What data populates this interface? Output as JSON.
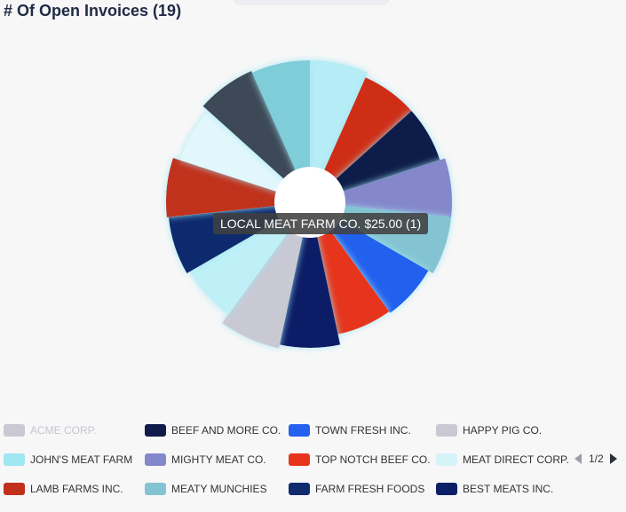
{
  "header": {
    "title": "# Of Open Invoices (19)"
  },
  "tooltip": {
    "text": "LOCAL MEAT FARM CO. $25.00 (1)"
  },
  "pager": {
    "text": "1/2"
  },
  "chart_data": {
    "type": "pie",
    "title": "# Of Open Invoices (19)",
    "total": 19,
    "slices": [
      {
        "label": "",
        "value": 1,
        "color": "#b6ecf5"
      },
      {
        "label": "",
        "value": 1,
        "color": "#cf2e14"
      },
      {
        "label": "",
        "value": 1,
        "color": "#0f1c4a"
      },
      {
        "label": "",
        "value": 1,
        "color": "#8487ca"
      },
      {
        "label": "",
        "value": 1,
        "color": "#84c4d2"
      },
      {
        "label": "",
        "value": 1,
        "color": "#2461ee"
      },
      {
        "label": "",
        "value": 1,
        "color": "#e6341c"
      },
      {
        "label": "",
        "value": 1,
        "color": "#0d1f66"
      },
      {
        "label": "",
        "value": 1,
        "color": "#c9c9d4"
      },
      {
        "label": "",
        "value": 1,
        "color": "#bff0f7"
      },
      {
        "label": "",
        "value": 1,
        "color": "#0f2a6e"
      },
      {
        "label": "",
        "value": 1,
        "color": "#c0301a"
      },
      {
        "label": "",
        "value": 1,
        "color": "#e1f7fb"
      },
      {
        "label": "",
        "value": 1,
        "color": "#3d4856"
      },
      {
        "label": "",
        "value": 1,
        "color": "#7ecdd8"
      }
    ],
    "legend": [
      {
        "label": "ACME CORP.",
        "color": "#c9c9d4",
        "hidden": true
      },
      {
        "label": "BEEF AND MORE CO.",
        "color": "#0f1c4a"
      },
      {
        "label": "TOWN FRESH INC.",
        "color": "#2461ee"
      },
      {
        "label": "HAPPY PIG CO.",
        "color": "#c9c9d4"
      },
      {
        "label": "JOHN'S MEAT FARM",
        "color": "#9ee6f2"
      },
      {
        "label": "MIGHTY MEAT CO.",
        "color": "#8487ca"
      },
      {
        "label": "TOP NOTCH BEEF CO.",
        "color": "#e6341c"
      },
      {
        "label": "MEAT DIRECT CORP.",
        "color": "#d6f3f8"
      },
      {
        "label": "LAMB FARMS INC.",
        "color": "#c0301a"
      },
      {
        "label": "MEATY MUNCHIES",
        "color": "#84c4d2"
      },
      {
        "label": "FARM FRESH FOODS",
        "color": "#0f2a6e"
      },
      {
        "label": "BEST MEATS INC.",
        "color": "#0d1f66"
      }
    ],
    "legend_placement": "bottom"
  }
}
